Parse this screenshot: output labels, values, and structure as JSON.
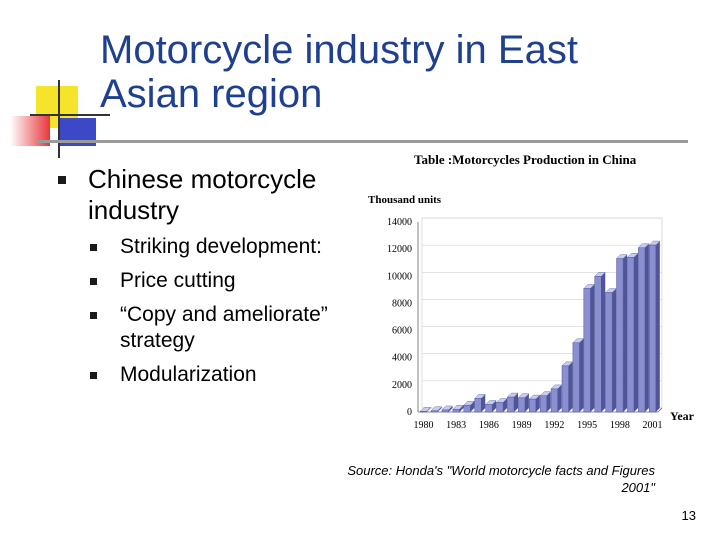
{
  "slide": {
    "title": "Motorcycle industry in East Asian region",
    "bullet": "Chinese motorcycle industry",
    "sub_bullets": [
      "Striking development:",
      "Price cutting",
      "“Copy and ameliorate” strategy",
      "Modularization"
    ],
    "source": "Source: Honda's \"World motorcycle facts and Figures 2001\"",
    "page_number": "13"
  },
  "colors": {
    "title": "#1f3f8f",
    "deco_yellow": "#f5e42a",
    "deco_red": "#e8353a",
    "deco_blue": "#3c49c6",
    "bar_fill": "#8a8fd0",
    "bar_dark": "#50559a"
  },
  "chart_data": {
    "type": "bar",
    "title": "Table :Motorcycles Production in China",
    "ylabel": "Thousand units",
    "xlabel": "Year",
    "ylim": [
      0,
      14000
    ],
    "yticks": [
      0,
      2000,
      4000,
      6000,
      8000,
      10000,
      12000,
      14000
    ],
    "xtick_labels": [
      "1980",
      "1983",
      "1986",
      "1989",
      "1992",
      "1995",
      "1998",
      "2001"
    ],
    "categories": [
      "1980",
      "1981",
      "1982",
      "1983",
      "1984",
      "1985",
      "1986",
      "1987",
      "1988",
      "1989",
      "1990",
      "1991",
      "1992",
      "1993",
      "1994",
      "1995",
      "1996",
      "1997",
      "1998",
      "1999",
      "2000",
      "2001"
    ],
    "values": [
      50,
      90,
      150,
      200,
      500,
      1000,
      550,
      700,
      1100,
      1050,
      950,
      1200,
      1700,
      3400,
      5100,
      9100,
      10000,
      8800,
      11300,
      11400,
      12100,
      12300
    ]
  }
}
